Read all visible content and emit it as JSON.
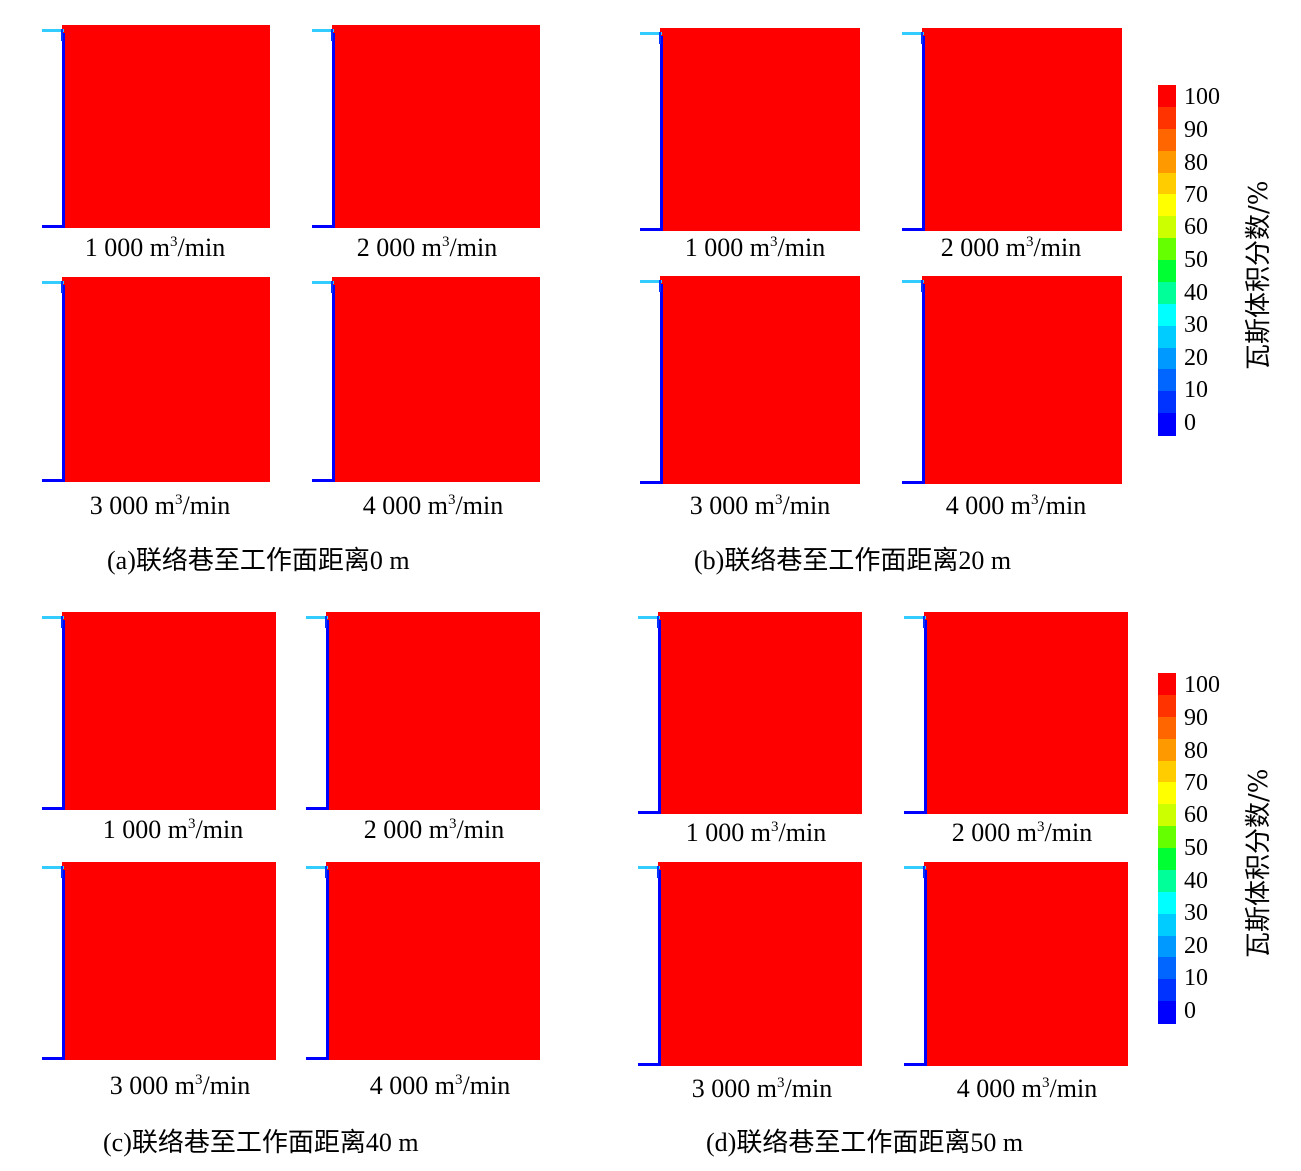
{
  "groups": [
    {
      "label": "(a)",
      "title": "联络巷至工作面距离0 m",
      "plots": [
        {
          "flow_value": "1 000",
          "unit_pre": " m",
          "unit_sup": "3",
          "unit_post": "/min"
        },
        {
          "flow_value": "2 000",
          "unit_pre": " m",
          "unit_sup": "3",
          "unit_post": "/min"
        },
        {
          "flow_value": "3 000",
          "unit_pre": " m",
          "unit_sup": "3",
          "unit_post": "/min"
        },
        {
          "flow_value": "4 000",
          "unit_pre": " m",
          "unit_sup": "3",
          "unit_post": "/min"
        }
      ]
    },
    {
      "label": "(b)",
      "title": "联络巷至工作面距离20 m",
      "plots": [
        {
          "flow_value": "1 000",
          "unit_pre": " m",
          "unit_sup": "3",
          "unit_post": "/min"
        },
        {
          "flow_value": "2 000",
          "unit_pre": " m",
          "unit_sup": "3",
          "unit_post": "/min"
        },
        {
          "flow_value": "3 000",
          "unit_pre": " m",
          "unit_sup": "3",
          "unit_post": "/min"
        },
        {
          "flow_value": "4 000",
          "unit_pre": " m",
          "unit_sup": "3",
          "unit_post": "/min"
        }
      ]
    },
    {
      "label": "(c)",
      "title": "联络巷至工作面距离40 m",
      "plots": [
        {
          "flow_value": "1 000",
          "unit_pre": " m",
          "unit_sup": "3",
          "unit_post": "/min"
        },
        {
          "flow_value": "2 000",
          "unit_pre": " m",
          "unit_sup": "3",
          "unit_post": "/min"
        },
        {
          "flow_value": "3 000",
          "unit_pre": " m",
          "unit_sup": "3",
          "unit_post": "/min"
        },
        {
          "flow_value": "4 000",
          "unit_pre": " m",
          "unit_sup": "3",
          "unit_post": "/min"
        }
      ]
    },
    {
      "label": "(d)",
      "title": "联络巷至工作面距离50 m",
      "plots": [
        {
          "flow_value": "1 000",
          "unit_pre": " m",
          "unit_sup": "3",
          "unit_post": "/min"
        },
        {
          "flow_value": "2 000",
          "unit_pre": " m",
          "unit_sup": "3",
          "unit_post": "/min"
        },
        {
          "flow_value": "3 000",
          "unit_pre": " m",
          "unit_sup": "3",
          "unit_post": "/min"
        },
        {
          "flow_value": "4 000",
          "unit_pre": " m",
          "unit_sup": "3",
          "unit_post": "/min"
        }
      ]
    }
  ],
  "colorbar": {
    "title": "瓦斯体积分数/%",
    "ticks": [
      "100",
      "90",
      "80",
      "70",
      "60",
      "50",
      "40",
      "30",
      "20",
      "10",
      "0"
    ],
    "colors": [
      "#ff0000",
      "#ff3300",
      "#ff6600",
      "#ff9900",
      "#ffcc00",
      "#ffff00",
      "#ccff00",
      "#66ff00",
      "#00ff33",
      "#00ff99",
      "#00ffff",
      "#00ccff",
      "#0099ff",
      "#0066ff",
      "#0033ff",
      "#0000ff"
    ]
  }
}
